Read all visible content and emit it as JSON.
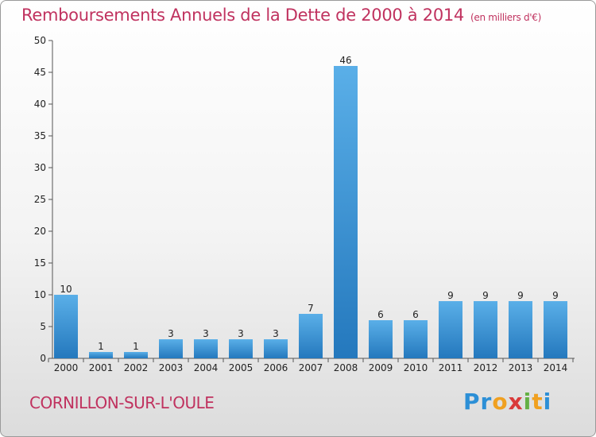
{
  "header": {
    "title": "Remboursements Annuels de la Dette de 2000 à 2014",
    "unit": "(en milliers d'€)"
  },
  "footer": {
    "town": "CORNILLON-SUR-L'OULE",
    "logo": "Proxiti"
  },
  "colors": {
    "bar_light": "#5aafe8",
    "bar_dark": "#2478bd",
    "title": "#c0325f"
  },
  "chart_data": {
    "type": "bar",
    "title": "Remboursements Annuels de la Dette de 2000 à 2014",
    "xlabel": "",
    "ylabel": "",
    "categories": [
      "2000",
      "2001",
      "2002",
      "2003",
      "2004",
      "2005",
      "2006",
      "2007",
      "2008",
      "2009",
      "2010",
      "2011",
      "2012",
      "2013",
      "2014"
    ],
    "values": [
      10,
      1,
      1,
      3,
      3,
      3,
      3,
      7,
      46,
      6,
      6,
      9,
      9,
      9,
      9
    ],
    "ylim": [
      0,
      50
    ],
    "yticks": [
      0,
      5,
      10,
      15,
      20,
      25,
      30,
      35,
      40,
      45,
      50
    ],
    "grid": false,
    "data_labels": true
  }
}
